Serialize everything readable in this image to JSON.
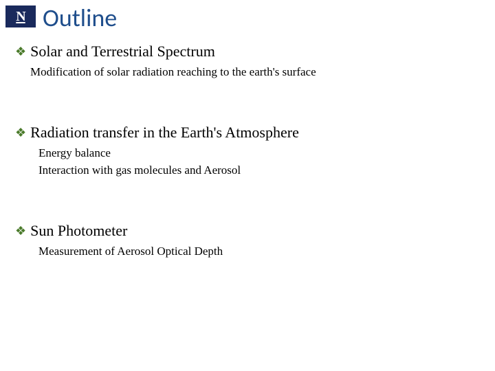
{
  "logo": {
    "text": "N"
  },
  "title": "Outline",
  "colors": {
    "title_color": "#1f4e8c",
    "bullet_color": "#4a7a2a",
    "logo_bg": "#1a2a5c",
    "logo_text": "#ffffff",
    "body_text": "#000000",
    "background": "#ffffff"
  },
  "typography": {
    "title_fontsize": 36,
    "heading_fontsize": 22,
    "subline_fontsize": 17,
    "title_fontfamily": "Calibri",
    "body_fontfamily": "Georgia"
  },
  "sections": [
    {
      "heading": "Solar and Terrestrial Spectrum",
      "sublines": [
        "Modification of solar radiation reaching to the earth's surface"
      ],
      "sub_indent": false
    },
    {
      "heading": "Radiation transfer  in the Earth's  Atmosphere",
      "sublines": [
        "Energy balance",
        "Interaction with gas molecules and Aerosol"
      ],
      "sub_indent": true
    },
    {
      "heading": "Sun Photometer",
      "sublines": [
        "Measurement of Aerosol Optical Depth"
      ],
      "sub_indent": true
    }
  ]
}
